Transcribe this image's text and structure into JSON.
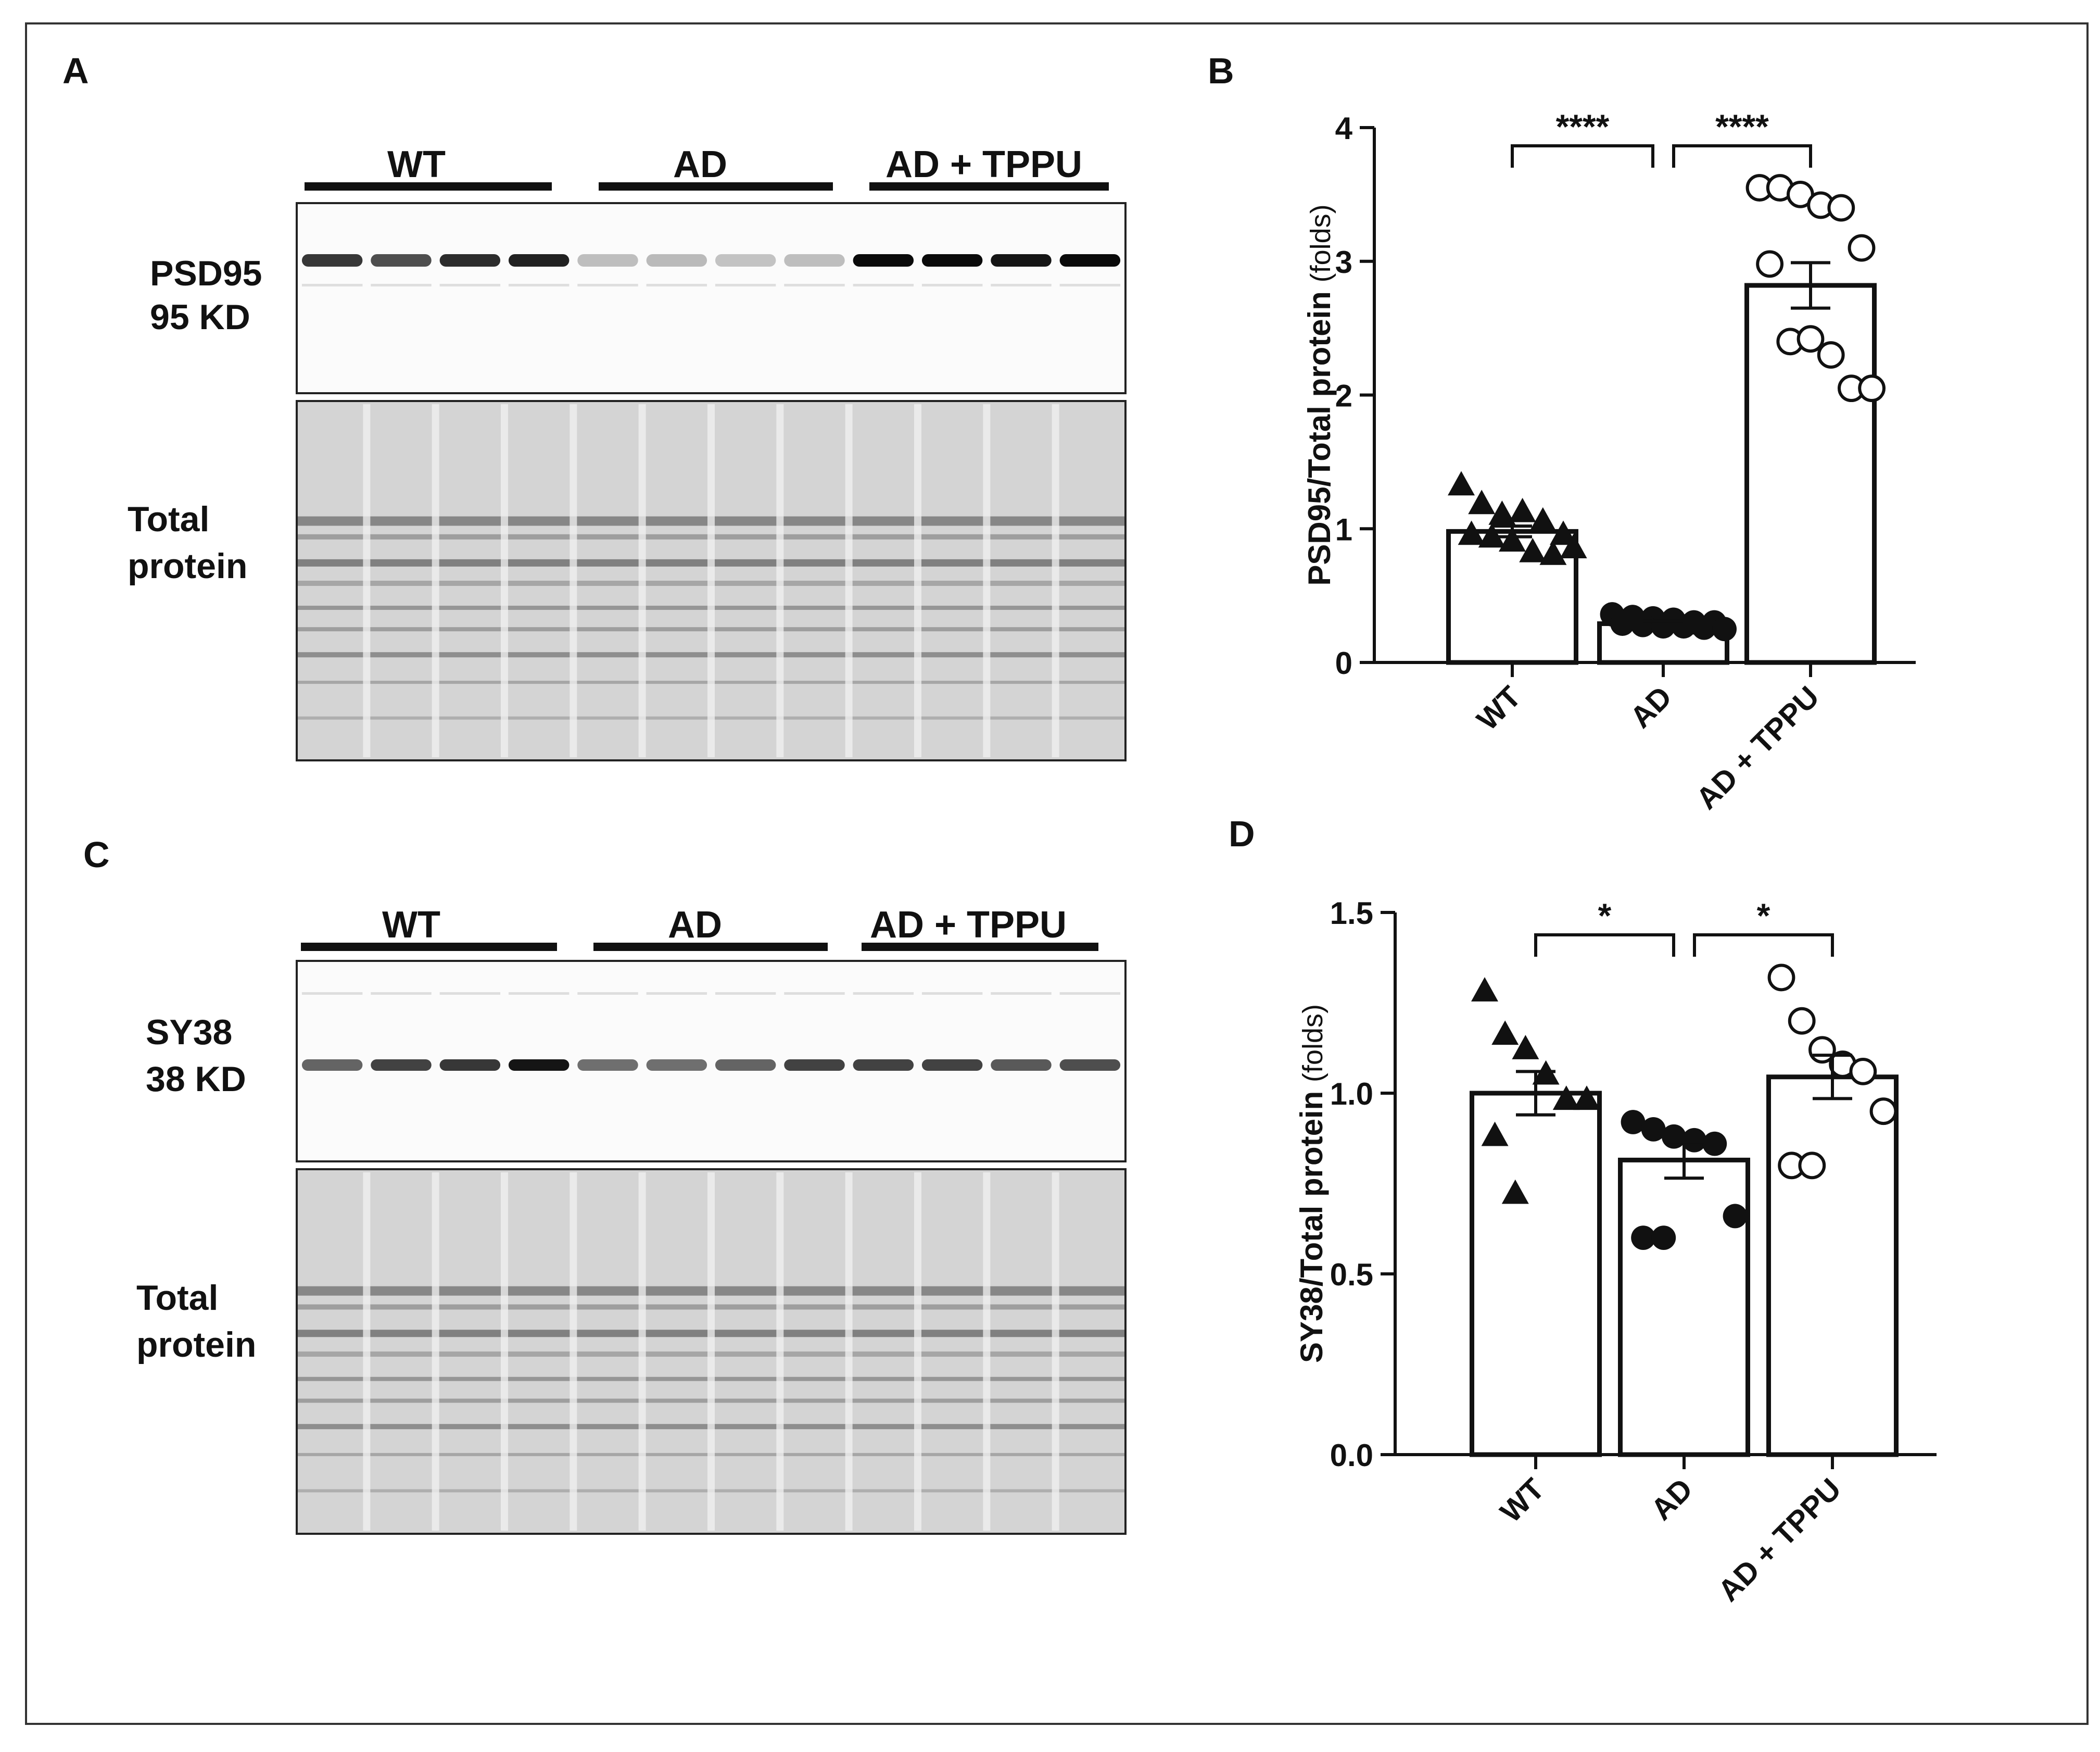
{
  "panels": {
    "A": {
      "letter": "A",
      "groups": [
        "WT",
        "AD",
        "AD + TPPU"
      ],
      "blot_label_1": "PSD95",
      "blot_label_2": "95 KD",
      "total_label_1": "Total",
      "total_label_2": "protein",
      "lanes_per_group": 4,
      "band_intensity": [
        0.8,
        0.7,
        0.85,
        0.9,
        0.2,
        0.22,
        0.18,
        0.2,
        1.0,
        1.0,
        0.95,
        1.0
      ]
    },
    "C": {
      "letter": "C",
      "groups": [
        "WT",
        "AD",
        "AD + TPPU"
      ],
      "blot_label_1": "SY38",
      "blot_label_2": "38 KD",
      "total_label_1": "Total",
      "total_label_2": "protein",
      "lanes_per_group": 4,
      "band_intensity": [
        0.6,
        0.75,
        0.8,
        0.95,
        0.55,
        0.55,
        0.6,
        0.75,
        0.75,
        0.75,
        0.65,
        0.7
      ]
    }
  },
  "chart_data": [
    {
      "panel": "B",
      "type": "bar",
      "title": "",
      "ylabel_main": "PSD95/Total protein",
      "ylabel_unit": "(folds)",
      "ylim": [
        0,
        4
      ],
      "yticks": [
        "0",
        "1",
        "2",
        "3",
        "4"
      ],
      "yticks_values": [
        0,
        1,
        2,
        3,
        4
      ],
      "categories": [
        "WT",
        "AD",
        "AD + TPPU"
      ],
      "values": [
        0.98,
        0.29,
        2.82
      ],
      "sem": [
        0.04,
        0.02,
        0.17
      ],
      "markers": [
        "triangle",
        "filled-circle",
        "open-circle"
      ],
      "points": [
        [
          1.32,
          1.18,
          1.1,
          1.12,
          1.05,
          0.95,
          0.95,
          0.93,
          0.9,
          0.82,
          0.8,
          0.85
        ],
        [
          0.36,
          0.34,
          0.33,
          0.32,
          0.3,
          0.3,
          0.29,
          0.28,
          0.27,
          0.27,
          0.26,
          0.25
        ],
        [
          3.55,
          3.55,
          3.5,
          3.42,
          3.4,
          3.1,
          2.98,
          2.4,
          2.42,
          2.3,
          2.05,
          2.05
        ]
      ],
      "comparisons": [
        {
          "from": 0,
          "to": 1,
          "label": "****"
        },
        {
          "from": 1,
          "to": 2,
          "label": "****"
        }
      ]
    },
    {
      "panel": "D",
      "type": "bar",
      "title": "",
      "ylabel_main": "SY38/Total protein",
      "ylabel_unit": "(folds)",
      "ylim": [
        0,
        1.5
      ],
      "yticks": [
        "0.0",
        "0.5",
        "1.0",
        "1.5"
      ],
      "yticks_values": [
        0,
        0.5,
        1.0,
        1.5
      ],
      "categories": [
        "WT",
        "AD",
        "AD + TPPU"
      ],
      "values": [
        1.0,
        0.815,
        1.045
      ],
      "sem": [
        0.06,
        0.05,
        0.06
      ],
      "markers": [
        "triangle",
        "filled-circle",
        "open-circle"
      ],
      "points": [
        [
          1.28,
          1.16,
          1.12,
          1.05,
          0.98,
          0.98,
          0.88,
          0.72
        ],
        [
          0.92,
          0.9,
          0.88,
          0.87,
          0.86,
          0.66,
          0.6,
          0.6
        ],
        [
          1.32,
          1.2,
          1.12,
          1.08,
          1.06,
          0.95,
          0.8,
          0.8
        ]
      ],
      "comparisons": [
        {
          "from": 0,
          "to": 1,
          "label": "*"
        },
        {
          "from": 1,
          "to": 2,
          "label": "*"
        }
      ]
    }
  ]
}
